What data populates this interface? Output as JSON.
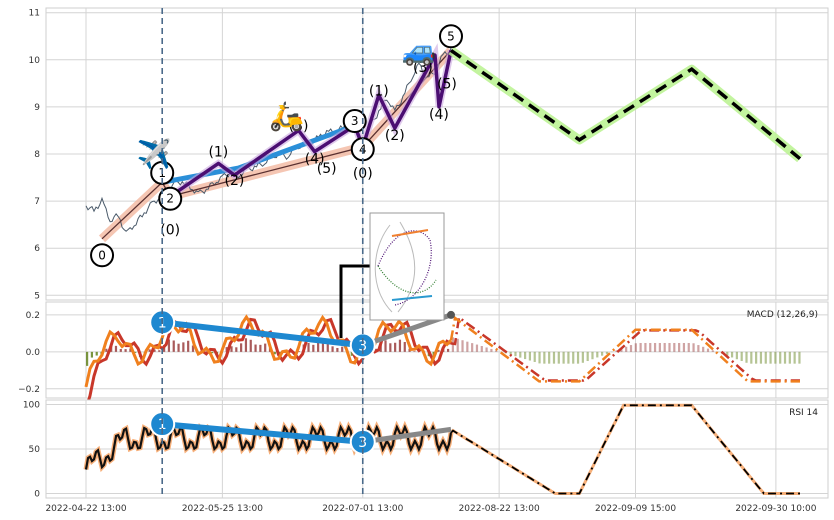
{
  "chart_data": [
    {
      "panel": "price",
      "type": "line",
      "ylim": [
        4.9,
        11.1
      ],
      "yticks": [
        "5",
        "6",
        "7",
        "8",
        "9",
        "10",
        "11"
      ],
      "grid": true,
      "series": [
        {
          "values": [
            [
              0,
              6.9
            ],
            [
              2,
              6.8
            ],
            [
              4,
              7.0
            ],
            [
              6,
              6.6
            ],
            [
              8,
              6.7
            ],
            [
              10,
              6.3
            ],
            [
              12,
              6.5
            ],
            [
              14,
              6.7
            ],
            [
              16,
              6.9
            ],
            [
              18,
              7.05
            ],
            [
              20,
              7.2
            ],
            [
              22,
              7.35
            ],
            [
              24,
              7.42
            ],
            [
              26,
              7.3
            ],
            [
              28,
              7.15
            ],
            [
              30,
              7.25
            ],
            [
              32,
              7.4
            ],
            [
              34,
              7.5
            ],
            [
              36,
              7.6
            ],
            [
              38,
              7.55
            ],
            [
              40,
              7.65
            ],
            [
              42,
              7.72
            ],
            [
              44,
              7.8
            ],
            [
              46,
              7.9
            ],
            [
              48,
              8.0
            ],
            [
              50,
              7.95
            ],
            [
              52,
              8.1
            ],
            [
              54,
              8.2
            ],
            [
              56,
              8.25
            ],
            [
              58,
              8.35
            ],
            [
              60,
              8.45
            ],
            [
              62,
              8.5
            ],
            [
              64,
              8.55
            ],
            [
              66,
              8.6
            ],
            [
              68,
              8.45
            ]
          ]
        },
        {
          "values": [
            [
              68,
              8.45
            ],
            [
              69,
              8.2
            ],
            [
              71,
              8.6
            ],
            [
              73,
              8.9
            ],
            [
              75,
              9.2
            ],
            [
              77,
              8.9
            ],
            [
              79,
              9.2
            ],
            [
              81,
              9.6
            ],
            [
              83,
              9.9
            ],
            [
              85,
              9.6
            ],
            [
              87,
              9.75
            ],
            [
              89,
              10.1
            ],
            [
              91,
              10.2
            ]
          ]
        }
      ],
      "forecast": {
        "values": [
          [
            91,
            10.2
          ],
          [
            123,
            8.3
          ],
          [
            151,
            9.8
          ],
          [
            178,
            7.9
          ]
        ]
      },
      "zigzag": [
        [
          4,
          6.2
        ],
        [
          19,
          7.4
        ],
        [
          21,
          7.1
        ],
        [
          69,
          8.15
        ],
        [
          91,
          10.2
        ]
      ],
      "subwaves": [
        [
          21,
          7.1
        ],
        [
          33,
          7.8
        ],
        [
          37,
          7.55
        ],
        [
          53,
          8.5
        ],
        [
          57,
          8.05
        ],
        [
          67,
          8.6
        ],
        [
          69,
          8.15
        ],
        [
          73,
          9.25
        ],
        [
          77,
          8.55
        ],
        [
          87,
          10.1
        ],
        [
          88,
          9.0
        ],
        [
          91,
          10.2
        ]
      ],
      "corrective": [
        [
          19,
          7.4
        ],
        [
          38,
          7.7
        ],
        [
          67,
          8.6
        ]
      ],
      "wave_labels": [
        {
          "t": "0",
          "x": 4,
          "y": 5.85,
          "circle": true
        },
        {
          "t": "1",
          "x": 19,
          "y": 7.6,
          "circle": true
        },
        {
          "t": "2",
          "x": 21,
          "y": 7.05,
          "circle": true
        },
        {
          "t": "3",
          "x": 67,
          "y": 8.7,
          "circle": true
        },
        {
          "t": "4",
          "x": 69,
          "y": 8.1,
          "circle": true
        },
        {
          "t": "5",
          "x": 91,
          "y": 10.5,
          "circle": true
        },
        {
          "t": "(0)",
          "x": 21,
          "y": 6.4,
          "circle": false
        },
        {
          "t": "(1)",
          "x": 33,
          "y": 8.05,
          "circle": false
        },
        {
          "t": "(2)",
          "x": 37,
          "y": 7.45,
          "circle": false
        },
        {
          "t": "(3)",
          "x": 53,
          "y": 8.6,
          "circle": false
        },
        {
          "t": "(4)",
          "x": 57,
          "y": 7.9,
          "circle": false
        },
        {
          "t": "(5)",
          "x": 60,
          "y": 7.7,
          "circle": false
        },
        {
          "t": "(0)",
          "x": 69,
          "y": 7.6,
          "circle": false
        },
        {
          "t": "(1)",
          "x": 73,
          "y": 9.35,
          "circle": false
        },
        {
          "t": "(2)",
          "x": 77,
          "y": 8.4,
          "circle": false
        },
        {
          "t": "(3)",
          "x": 84,
          "y": 9.85,
          "circle": false
        },
        {
          "t": "(4)",
          "x": 88,
          "y": 8.85,
          "circle": false
        },
        {
          "t": "(5)",
          "x": 90,
          "y": 9.5,
          "circle": false
        }
      ],
      "emojis": [
        {
          "t": "✈️",
          "x": 17,
          "y": 7.8
        },
        {
          "t": "🛵",
          "x": 50,
          "y": 8.6
        },
        {
          "t": "🚙",
          "x": 83,
          "y": 10.0
        }
      ]
    },
    {
      "panel": "macd",
      "type": "line",
      "legend_text": "MACD (12,26,9)",
      "ylim": [
        -0.25,
        0.27
      ],
      "yticks": [
        "0.2",
        "0.0",
        "−0.2"
      ],
      "divergence": [
        [
          19,
          0.16
        ],
        [
          69,
          0.035
        ]
      ],
      "divergence2": [
        [
          69,
          0.035
        ],
        [
          91,
          0.2
        ]
      ]
    },
    {
      "panel": "rsi",
      "type": "line",
      "legend_text": "RSI 14",
      "ylim": [
        -5,
        105
      ],
      "yticks": [
        "100",
        "50",
        "0"
      ],
      "divergence": [
        [
          19,
          78
        ],
        [
          69,
          58
        ]
      ],
      "divergence2": [
        [
          69,
          58
        ],
        [
          91,
          72
        ]
      ]
    }
  ],
  "xticks": [
    "2022-04-22 13:00",
    "2022-05-25 13:00",
    "2022-07-01 13:00",
    "2022-08-22 13:00",
    "2022-09-09 15:00",
    "2022-09-30 10:00"
  ],
  "colors": {
    "grid": "#d4d4d4",
    "price": "#4a5a6a",
    "zig": "#f2b8a0",
    "sub": "#4b0e72",
    "corr": "#2b8fd8",
    "fc_glow": "#b9f28e",
    "div": "#1e88d0",
    "div2": "#888888",
    "macd1": "#f0801e",
    "macd2": "#c8372a",
    "rsi": "#111111",
    "rsi_glow": "#f7b07a"
  }
}
